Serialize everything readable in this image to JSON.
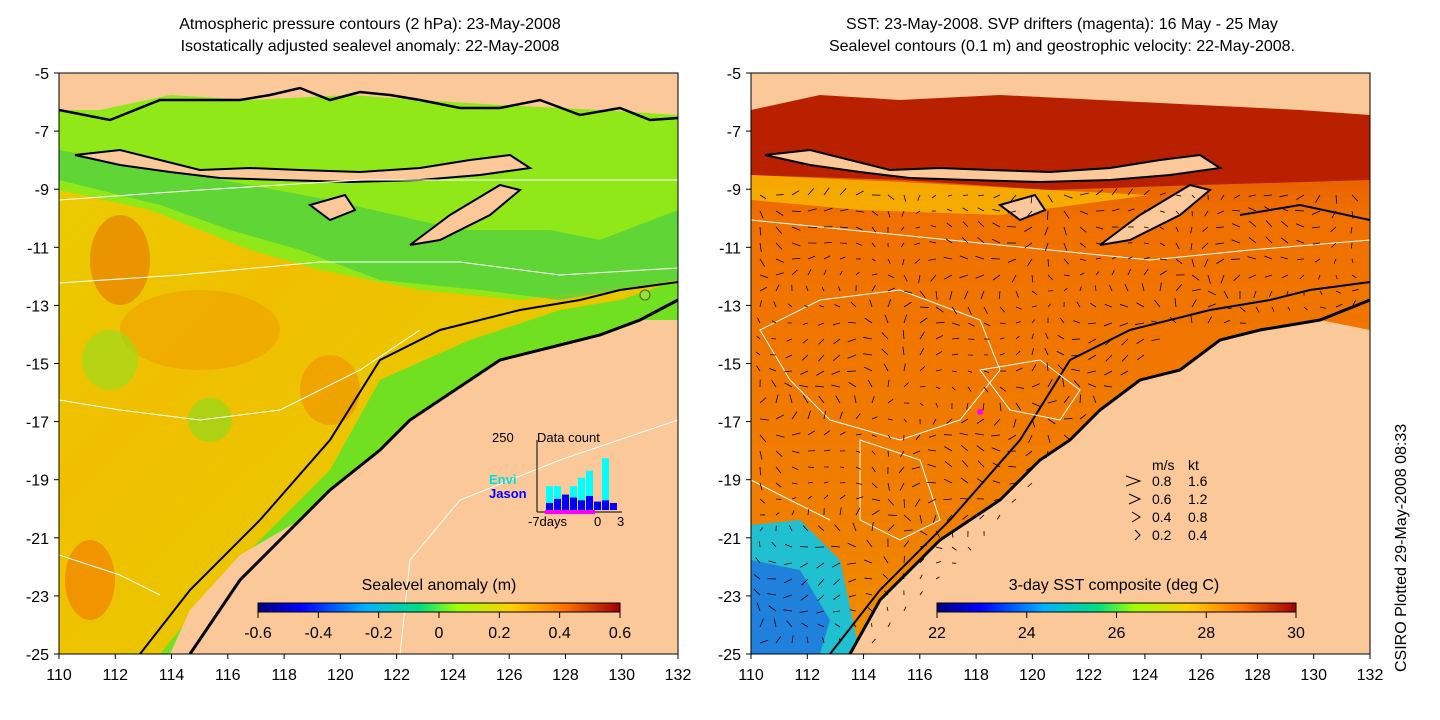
{
  "left_panel": {
    "title_line1": "Atmospheric pressure contours (2 hPa): 23-May-2008",
    "title_line2": "Isostatically adjusted sealevel anomaly: 22-May-2008",
    "colorbar_label": "Sealevel anomaly (m)",
    "colorbar_ticks": [
      "-0.6",
      "-0.4",
      "-0.2",
      "0",
      "0.2",
      "0.4",
      "0.6"
    ],
    "colorbar_range": [
      -0.6,
      0.6
    ],
    "inset": {
      "label_max": "250",
      "title": "Data count",
      "series": [
        {
          "name": "Envi",
          "color": "#00ffff"
        },
        {
          "name": "Jason",
          "color": "#0000ff"
        }
      ],
      "x_start_label": "-7days",
      "x_mid_label": "0",
      "x_end_label": "3",
      "envi_counts": [
        0,
        60,
        45,
        0,
        40,
        80,
        90,
        0,
        150,
        0
      ],
      "jason_counts": [
        0,
        25,
        40,
        55,
        45,
        35,
        50,
        30,
        35,
        25
      ]
    }
  },
  "right_panel": {
    "title_line1": "SST: 23-May-2008. SVP drifters (magenta): 16 May - 25 May",
    "title_line2": "Sealevel contours (0.1 m) and geostrophic velocity: 22-May-2008.",
    "colorbar_label": "3-day SST composite (deg C)",
    "colorbar_ticks": [
      "22",
      "24",
      "26",
      "28",
      "30"
    ],
    "colorbar_range": [
      22,
      30
    ],
    "velocity_legend": {
      "header_ms": "m/s",
      "header_kt": "kt",
      "rows": [
        {
          "ms": "0.8",
          "kt": "1.6"
        },
        {
          "ms": "0.6",
          "kt": "1.2"
        },
        {
          "ms": "0.4",
          "kt": "0.8"
        },
        {
          "ms": "0.2",
          "kt": "0.4"
        }
      ]
    }
  },
  "axes": {
    "y_ticks": [
      "-5",
      "-7",
      "-9",
      "-11",
      "-13",
      "-15",
      "-17",
      "-19",
      "-21",
      "-23",
      "-25"
    ],
    "x_ticks": [
      "110",
      "112",
      "114",
      "116",
      "118",
      "120",
      "122",
      "124",
      "126",
      "128",
      "130",
      "132"
    ],
    "lon_range": [
      110,
      132
    ],
    "lat_range": [
      -25,
      -5
    ]
  },
  "credit": "CSIRO Plotted 29-May-2008 08:33",
  "colors": {
    "land": "#fbc89a",
    "coast": "#000000",
    "contour": "#ffffff",
    "drifter": "#ff00ff"
  }
}
